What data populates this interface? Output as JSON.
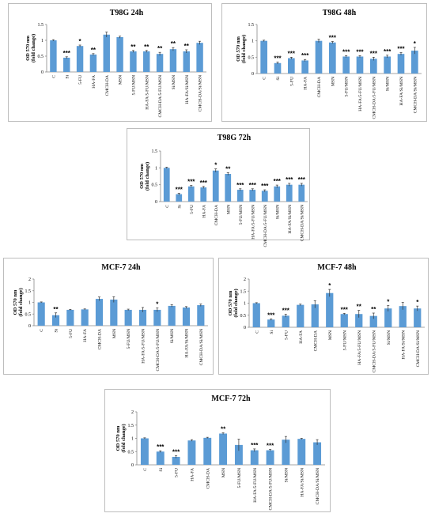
{
  "chart_data": [
    {
      "type": "bar",
      "title": "T98G 24h",
      "ylabel": "OD 570 nm\n(fold change)",
      "ylim": [
        0,
        1.5
      ],
      "yticks": [
        0,
        0.5,
        1,
        1.5
      ],
      "categories": [
        "C",
        "Si",
        "5-FU",
        "HA-FA",
        "CMCH-DA",
        "MSN",
        "5-FU/MSN",
        "HA-FA/5-FU/MSN",
        "CMCH-DA/5-FU/MSN",
        "Si/MSN",
        "HA-FA/Si/MSN",
        "CMCH-DA/Si/MSN"
      ],
      "values": [
        1.0,
        0.45,
        0.82,
        0.55,
        1.18,
        1.1,
        0.65,
        0.65,
        0.57,
        0.72,
        0.65,
        0.92
      ],
      "errors": [
        0.02,
        0.03,
        0.03,
        0.03,
        0.08,
        0.03,
        0.03,
        0.03,
        0.05,
        0.05,
        0.05,
        0.05
      ],
      "significance": [
        "",
        "***",
        "*",
        "**",
        "",
        "",
        "**",
        "**",
        "**",
        "**",
        "**",
        ""
      ]
    },
    {
      "type": "bar",
      "title": "T98G 48h",
      "ylabel": "OD 570 nm\n(fold change)",
      "ylim": [
        0,
        1.5
      ],
      "yticks": [
        0,
        0.5,
        1,
        1.5
      ],
      "categories": [
        "C",
        "Si",
        "5-FU",
        "HA-FA",
        "CMCH-DA",
        "MSN",
        "5-FU/MSN",
        "HA-FA/5-FU/MSN",
        "CMCH-DA/5-FU/MSN",
        "Si/MSN",
        "HA-FA/Si/MSN",
        "CMCH-DA/Si/MSN"
      ],
      "values": [
        1.0,
        0.32,
        0.47,
        0.4,
        1.0,
        0.95,
        0.52,
        0.52,
        0.45,
        0.52,
        0.6,
        0.7
      ],
      "errors": [
        0.02,
        0.03,
        0.03,
        0.03,
        0.05,
        0.03,
        0.03,
        0.03,
        0.05,
        0.04,
        0.04,
        0.1
      ],
      "significance": [
        "",
        "***",
        "***",
        "***",
        "",
        "***",
        "***",
        "***",
        "***",
        "***",
        "***",
        "*"
      ]
    },
    {
      "type": "bar",
      "title": "T98G 72h",
      "ylabel": "OD 570 nm\n(fold change)",
      "ylim": [
        0,
        1.5
      ],
      "yticks": [
        0,
        0.5,
        1,
        1.5
      ],
      "categories": [
        "C",
        "Si",
        "5-FU",
        "HA-FA",
        "CMCH-DA",
        "MSN",
        "5-FU/MSN",
        "HA-FA/5-FU/MSN",
        "CMCH-DA/5-FU/MSN",
        "Si/MSN",
        "HA-FA/Si/MSN",
        "CMCH-DA/Si/MSN"
      ],
      "values": [
        1.0,
        0.22,
        0.45,
        0.42,
        0.92,
        0.82,
        0.35,
        0.35,
        0.32,
        0.45,
        0.5,
        0.5
      ],
      "errors": [
        0.02,
        0.03,
        0.03,
        0.03,
        0.05,
        0.04,
        0.03,
        0.03,
        0.03,
        0.04,
        0.04,
        0.04
      ],
      "significance": [
        "",
        "***",
        "***",
        "***",
        "*",
        "**",
        "***",
        "***",
        "***",
        "***",
        "***",
        "***"
      ]
    },
    {
      "type": "bar",
      "title": "MCF-7 24h",
      "ylabel": "OD 570 nm\n(fold change)",
      "ylim": [
        0,
        2
      ],
      "yticks": [
        0,
        0.5,
        1,
        1.5,
        2
      ],
      "categories": [
        "C",
        "Si",
        "5-FU",
        "HA-FA",
        "CMCH-DA",
        "MSN",
        "5-FU/MSN",
        "HA-FA/5-FU/MSN",
        "CMCH-DA/5-FU/MSN",
        "Si/MSN",
        "HA-FA/Si/MSN",
        "CMCH-DA/Si/MSN"
      ],
      "values": [
        1.0,
        0.45,
        0.68,
        0.7,
        1.15,
        1.12,
        0.68,
        0.68,
        0.68,
        0.85,
        0.78,
        0.88
      ],
      "errors": [
        0.02,
        0.1,
        0.02,
        0.02,
        0.08,
        0.12,
        0.03,
        0.1,
        0.08,
        0.05,
        0.04,
        0.05
      ],
      "significance": [
        "",
        "**",
        "",
        "",
        "",
        "",
        "",
        "",
        "*",
        "",
        "",
        ""
      ]
    },
    {
      "type": "bar",
      "title": "MCF-7 48h",
      "ylabel": "OD 570 nm\n(fold change)",
      "ylim": [
        0,
        2
      ],
      "yticks": [
        0,
        0.5,
        1,
        1.5,
        2
      ],
      "categories": [
        "C",
        "Si",
        "5-FU",
        "HA-FA",
        "CMCH-DA",
        "MSN",
        "5-FU/MSN",
        "HA-FA/5-FU/MSN",
        "CMCH-DA/5-FU/MSN",
        "Si/MSN",
        "HA-FA/Si/MSN",
        "CMCH-DA/Si/MSN"
      ],
      "values": [
        1.0,
        0.32,
        0.48,
        0.93,
        0.95,
        1.42,
        0.55,
        0.55,
        0.47,
        0.78,
        0.88,
        0.78
      ],
      "errors": [
        0.02,
        0.03,
        0.06,
        0.03,
        0.15,
        0.15,
        0.03,
        0.15,
        0.12,
        0.12,
        0.15,
        0.1
      ],
      "significance": [
        "",
        "***",
        "***",
        "",
        "",
        "*",
        "***",
        "**",
        "**",
        "*",
        "",
        "*"
      ]
    },
    {
      "type": "bar",
      "title": "MCF-7 72h",
      "ylabel": "OD 570 nm\n(fold change)",
      "ylim": [
        0,
        2
      ],
      "yticks": [
        0,
        0.5,
        1,
        1.5,
        2
      ],
      "categories": [
        "C",
        "Si",
        "5-FU",
        "HA-FA",
        "CMCH-DA",
        "MSN",
        "5-FU/MSN",
        "HA-FA/5-FU/MSN",
        "CMCH-DA/5-FU/MSN",
        "Si/MSN",
        "HA-FA/Si/MSN",
        "CMCH-DA/Si/MSN"
      ],
      "values": [
        1.0,
        0.5,
        0.3,
        0.92,
        1.02,
        1.18,
        0.75,
        0.55,
        0.55,
        0.95,
        0.98,
        0.85
      ],
      "errors": [
        0.02,
        0.03,
        0.05,
        0.03,
        0.02,
        0.03,
        0.22,
        0.05,
        0.03,
        0.12,
        0.02,
        0.1
      ],
      "significance": [
        "",
        "***",
        "***",
        "",
        "",
        "**",
        "",
        "***",
        "***",
        "",
        "",
        ""
      ]
    }
  ]
}
